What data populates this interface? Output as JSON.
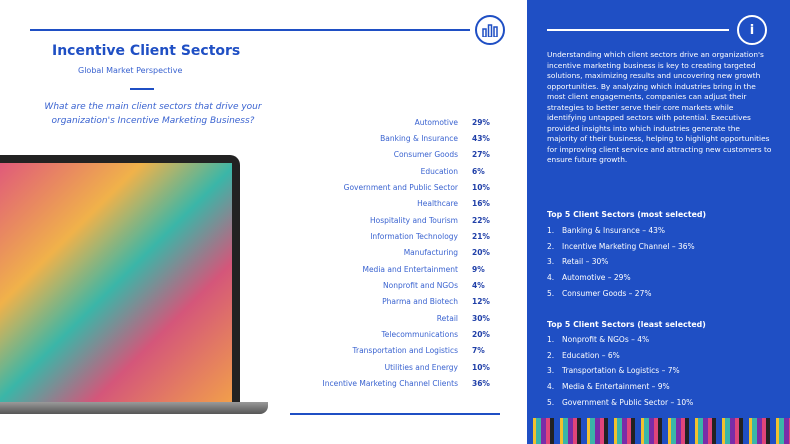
{
  "title": "Incentive Client Sectors",
  "subtitle": "Global Market Perspective",
  "question": "What are the main client sectors that drive your organization's Incentive Marketing Business?",
  "sectors": [
    {
      "label": "Automotive",
      "value": "29%"
    },
    {
      "label": "Banking & Insurance",
      "value": "43%"
    },
    {
      "label": "Consumer Goods",
      "value": "27%"
    },
    {
      "label": "Education",
      "value": "6%"
    },
    {
      "label": "Government and Public Sector",
      "value": "10%"
    },
    {
      "label": "Healthcare",
      "value": "16%"
    },
    {
      "label": "Hospitality and Tourism",
      "value": "22%"
    },
    {
      "label": "Information Technology",
      "value": "21%"
    },
    {
      "label": "Manufacturing",
      "value": "20%"
    },
    {
      "label": "Media and Entertainment",
      "value": "9%"
    },
    {
      "label": "Nonprofit and NGOs",
      "value": "4%"
    },
    {
      "label": "Pharma and Biotech",
      "value": "12%"
    },
    {
      "label": "Retail",
      "value": "30%"
    },
    {
      "label": "Telecommunications",
      "value": "20%"
    },
    {
      "label": "Transportation and Logistics",
      "value": "7%"
    },
    {
      "label": "Utilities and Energy",
      "value": "10%"
    },
    {
      "label": "Incentive Marketing Channel Clients",
      "value": "36%"
    }
  ],
  "panel": {
    "paragraph": "Understanding which client sectors drive an organization's incentive marketing business is key to creating targeted solutions, maximizing results and uncovering new growth opportunities. By analyzing which industries bring in the most client engagements, companies can adjust their strategies to better serve their core markets while identifying untapped sectors with potential. Executives provided insights into which industries generate the majority of their business, helping to highlight opportunities for improving client service and attracting new customers to ensure future growth.",
    "top_heading": "Top 5 Client Sectors (most selected)",
    "top": [
      "Banking & Insurance – 43%",
      "Incentive Marketing Channel – 36%",
      "Retail – 30%",
      "Automotive – 29%",
      "Consumer Goods – 27%"
    ],
    "least_heading": "Top 5 Client Sectors (least selected)",
    "least": [
      "Nonprofit & NGOs – 4%",
      "Education – 6%",
      "Transportation & Logistics – 7%",
      "Media & Entertainment – 9%",
      "Government & Public Sector – 10%"
    ]
  }
}
